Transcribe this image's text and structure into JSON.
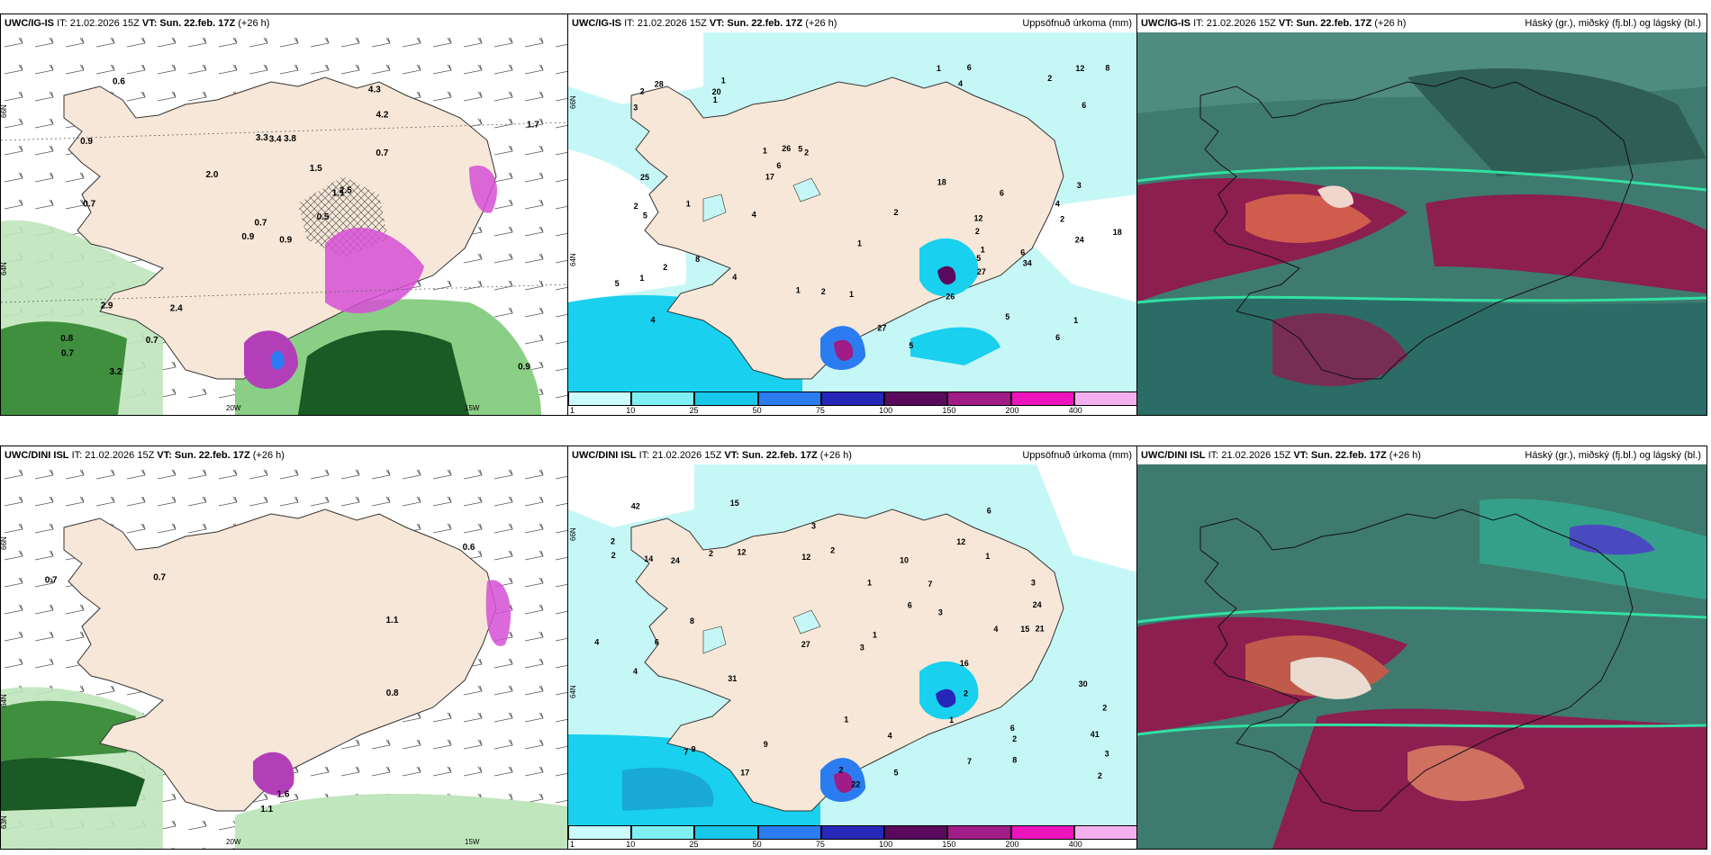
{
  "common": {
    "init_time": "IT: 21.02.2026 15Z",
    "valid_time": "VT: Sun. 22.feb. 17Z",
    "lead": "(+26 h)"
  },
  "rows": [
    {
      "model": "UWC/IG-IS"
    },
    {
      "model": "UWC/DINI ISL"
    }
  ],
  "titles": {
    "precip": "Uppsöfnuð úrkoma (mm)",
    "clouds": "Háský (gr.), miðský (fj.bl.) og lágský (bl.)"
  },
  "colorbar": {
    "labels": [
      "1",
      "10",
      "25",
      "50",
      "75",
      "100",
      "150",
      "200",
      "400"
    ],
    "colors": [
      "#cbfbfb",
      "#7ef0f4",
      "#18c8ea",
      "#2a7cf0",
      "#2626b8",
      "#5a0a5c",
      "#a01c86",
      "#ec14bc",
      "#f4b0ee"
    ]
  },
  "axis_labels": {
    "lat_66": "66N",
    "lat_64": "64N",
    "lat_63": "63N",
    "lon_20": "20W",
    "lon_15": "15W"
  },
  "colors": {
    "land": "#f6e7d8",
    "sea": "#ffffff",
    "precip_light": "#c6f7f7",
    "precip_mid": "#19d0ee",
    "green_light": "#bfe6bd",
    "green_dark": "#1a5a24",
    "magenta": "#d64fd6",
    "cloud_base": "#3f7a6e"
  },
  "panel1_top_labels": [
    "0.9",
    "0.9",
    "0.7",
    "0.8",
    "1.1",
    "2.4",
    "4.3",
    "3.8",
    "4.2",
    "0.5",
    "0.6",
    "0.9",
    "0.7",
    "1.7",
    "0.9",
    "0.7",
    "3.2",
    "3.3",
    "1.5",
    "2.9",
    "2.0",
    "0.7",
    "0.7",
    "3.4",
    "2.5"
  ],
  "panel1_bottom_labels": [
    "0.7",
    "0.7",
    "1.1",
    "1.6",
    "0.6",
    "1.1",
    "0.8"
  ],
  "panel2_top_labels": [
    "2",
    "2",
    "4",
    "1",
    "2",
    "5",
    "1",
    "4",
    "1",
    "5",
    "3",
    "2",
    "2",
    "1",
    "1",
    "3",
    "1",
    "2",
    "5",
    "8",
    "8",
    "2",
    "17",
    "24",
    "1",
    "20",
    "1",
    "5",
    "1",
    "6",
    "27",
    "26",
    "6",
    "4",
    "4",
    "34",
    "5",
    "1",
    "1",
    "2",
    "6",
    "6",
    "6",
    "2",
    "6",
    "4",
    "5",
    "28",
    "18",
    "25",
    "18",
    "26",
    "12",
    "12",
    "27"
  ],
  "panel2_bottom_labels": [
    "1",
    "2",
    "2",
    "3",
    "2",
    "2",
    "5",
    "12",
    "8",
    "4",
    "6",
    "10",
    "16",
    "14",
    "3",
    "1",
    "2",
    "1",
    "4",
    "2",
    "2",
    "1",
    "3",
    "27",
    "24",
    "24",
    "42",
    "2",
    "1",
    "3",
    "7",
    "6",
    "6",
    "21",
    "31",
    "12",
    "15",
    "12",
    "7",
    "8",
    "3",
    "4",
    "4",
    "17",
    "7",
    "22",
    "41",
    "30",
    "9",
    "15",
    "9",
    "6",
    "2"
  ]
}
